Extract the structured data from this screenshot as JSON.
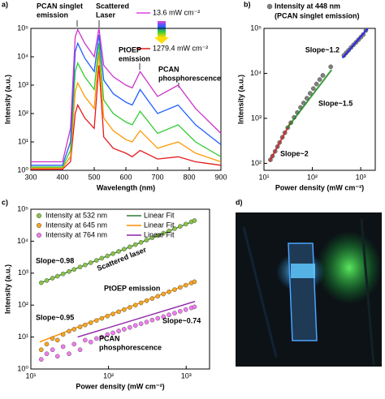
{
  "chart_data": [
    {
      "type": "line",
      "label": "a)",
      "xlabel": "Wavelength (nm)",
      "ylabel": "Intensity (a.u.)",
      "xlim": [
        300,
        900
      ],
      "xticks": [
        300,
        400,
        500,
        600,
        700,
        800,
        900
      ],
      "ylim": [
        1,
        100000
      ],
      "yscale": "log",
      "yticks": [
        {
          "value": 1,
          "label": "10⁰"
        },
        {
          "value": 10,
          "label": "10¹"
        },
        {
          "value": 100,
          "label": "10²"
        },
        {
          "value": 1000,
          "label": "10³"
        },
        {
          "value": 10000,
          "label": "10⁴"
        },
        {
          "value": 100000,
          "label": "10⁵"
        }
      ],
      "x": [
        300,
        400,
        425,
        440,
        448,
        470,
        500,
        515,
        530,
        560,
        600,
        620,
        645,
        700,
        765,
        820,
        900
      ],
      "series": [
        {
          "color": "#e41a1c",
          "values": [
            1.1,
            1.1,
            2,
            100,
            200,
            70,
            30,
            5000,
            15,
            6,
            4,
            3,
            5,
            2.5,
            3,
            2,
            1.5
          ]
        },
        {
          "color": "#ff9900",
          "values": [
            1.2,
            1.2,
            3,
            600,
            1200,
            400,
            150,
            15000,
            70,
            25,
            12,
            10,
            25,
            6,
            10,
            4,
            2
          ]
        },
        {
          "color": "#33cc33",
          "values": [
            1.3,
            1.3,
            5,
            3000,
            6000,
            2000,
            700,
            30000,
            300,
            100,
            50,
            40,
            120,
            20,
            40,
            10,
            3
          ]
        },
        {
          "color": "#1f5fff",
          "values": [
            1.5,
            1.5,
            10,
            15000,
            30000,
            9000,
            3000,
            60000,
            1500,
            500,
            250,
            200,
            700,
            100,
            200,
            40,
            8
          ]
        },
        {
          "color": "#cc33cc",
          "values": [
            2,
            2,
            30,
            50000,
            90000,
            30000,
            10000,
            100000,
            5000,
            2000,
            1000,
            800,
            3000,
            400,
            1000,
            150,
            20
          ]
        }
      ],
      "power_labels": [
        {
          "text": "13.6 mW cm⁻²",
          "color": "#e040e0"
        },
        {
          "text": "1279.4 mW cm⁻²",
          "color": "#e41a1c"
        }
      ],
      "annotations": [
        {
          "lines": [
            "PCAN singlet",
            "emission"
          ],
          "color": "#1a1aff"
        },
        {
          "lines": [
            "Scattered",
            "Laser"
          ],
          "color": "#1a8c1a"
        },
        {
          "lines": [
            "PtOEP",
            "emission"
          ],
          "color": "#d62020"
        },
        {
          "lines": [
            "PCAN",
            "phosphorescence"
          ],
          "color": "#8b1a1a"
        }
      ]
    },
    {
      "type": "scatter",
      "label": "b)",
      "xlabel": "Power density (mW cm⁻²)",
      "ylabel": "Intensity (a.u.)",
      "xlim": [
        10,
        2000
      ],
      "xscale": "log",
      "xticks": [
        {
          "value": 10,
          "label": "10¹"
        },
        {
          "value": 100,
          "label": "10²"
        },
        {
          "value": 1000,
          "label": "10³"
        }
      ],
      "ylim": [
        70,
        100000
      ],
      "yscale": "log",
      "yticks": [
        {
          "value": 100,
          "label": "10²"
        },
        {
          "value": 1000,
          "label": "10³"
        },
        {
          "value": 10000,
          "label": "10⁴"
        },
        {
          "value": 100000,
          "label": "10⁵"
        }
      ],
      "x": [
        13.6,
        15,
        17,
        19,
        21,
        24,
        27,
        31,
        36,
        42,
        49,
        57,
        66,
        77,
        90,
        105,
        122,
        142,
        165,
        240,
        450,
        500,
        560,
        630,
        710,
        800,
        900,
        1010,
        1130,
        1279.4
      ],
      "series": [
        {
          "name": "Intensity at 448 nm",
          "note": "(PCAN singlet emission)",
          "color": "#808080",
          "values": [
            120,
            145,
            185,
            235,
            290,
            380,
            480,
            620,
            800,
            1050,
            1350,
            1750,
            2200,
            2800,
            3600,
            4600,
            5800,
            7300,
            9000,
            14000,
            25000,
            28500,
            32500,
            37500,
            43000,
            49000,
            56000,
            64000,
            73000,
            90000
          ]
        }
      ],
      "fits": [
        {
          "label": "Slope~2",
          "color": "#d62020",
          "x": [
            13,
            36
          ],
          "y": [
            110,
            830
          ]
        },
        {
          "label": "Slope~1.5",
          "color": "#1a8c1a",
          "x": [
            30,
            250
          ],
          "y": [
            600,
            12000
          ]
        },
        {
          "label": "Slope~1.2",
          "color": "#1a1aff",
          "x": [
            420,
            1400
          ],
          "y": [
            22000,
            100000
          ]
        }
      ]
    },
    {
      "type": "scatter",
      "label": "c)",
      "xlabel": "Power density (mW cm⁻²)",
      "ylabel": "Intensity (a.u.)",
      "xlim": [
        10,
        2000
      ],
      "xscale": "log",
      "xticks": [
        {
          "value": 10,
          "label": "10¹"
        },
        {
          "value": 100,
          "label": "10²"
        },
        {
          "value": 1000,
          "label": "10³"
        }
      ],
      "ylim": [
        1,
        100000
      ],
      "yscale": "log",
      "yticks": [
        {
          "value": 1,
          "label": "10⁰"
        },
        {
          "value": 10,
          "label": "10¹"
        },
        {
          "value": 100,
          "label": "10²"
        },
        {
          "value": 1000,
          "label": "10³"
        },
        {
          "value": 10000,
          "label": "10⁴"
        },
        {
          "value": 100000,
          "label": "10⁵"
        }
      ],
      "x": [
        13.6,
        16,
        19,
        22,
        26,
        31,
        36,
        43,
        50,
        59,
        70,
        82,
        97,
        114,
        135,
        159,
        188,
        222,
        262,
        309,
        365,
        431,
        509,
        600,
        709,
        837,
        988,
        1166,
        1279.4
      ],
      "series": [
        {
          "name": "Intensity at 532 nm",
          "color": "#8bc34a",
          "fit_name": "Linear Fit",
          "fit_color": "#2e7d32",
          "fit_x": [
            13,
            1300
          ],
          "fit_y": [
            480,
            44000
          ],
          "values": [
            500,
            586,
            695,
            803,
            947,
            1126,
            1305,
            1554,
            1803,
            2121,
            2511,
            2934,
            3463,
            4061,
            4798,
            5640,
            6650,
            7835,
            9226,
            10860,
            12800,
            15090,
            17790,
            20930,
            24680,
            29080,
            34260,
            40360,
            44200
          ]
        },
        {
          "name": "Intensity at 645 nm",
          "color": "#f5a623",
          "fit_name": "Linear Fit",
          "fit_color": "#ff8c00",
          "fit_x": [
            13,
            1300
          ],
          "fit_y": [
            7,
            550
          ],
          "values": [
            4,
            6,
            9,
            8,
            12,
            15.2,
            17.5,
            20.7,
            23.9,
            28,
            33,
            38.4,
            45.1,
            52.6,
            61.8,
            72.4,
            85,
            99.9,
            117,
            137,
            161,
            189,
            222,
            260,
            305,
            357,
            419,
            491,
            538
          ]
        },
        {
          "name": "Intensity at 764 nm",
          "color": "#f07cf0",
          "fit_name": "Linear Fit",
          "fit_color": "#8e24aa",
          "fit_x": [
            40,
            1300
          ],
          "fit_y": [
            10,
            130
          ],
          "values": [
            2,
            3,
            4,
            2.5,
            5,
            3,
            6,
            4,
            8,
            7,
            9,
            10,
            12,
            13.5,
            15.5,
            17.5,
            20,
            23,
            26,
            29.5,
            34,
            38.5,
            43.5,
            49.5,
            56,
            64,
            72,
            82,
            88
          ]
        }
      ],
      "annotations": [
        {
          "lines": [
            "Slope~0.98"
          ],
          "color": "#2e7d32"
        },
        {
          "lines": [
            "Scattered laser"
          ],
          "color": "#2e7d32"
        },
        {
          "lines": [
            "PtOEP emission"
          ],
          "color": "#ff8c00"
        },
        {
          "lines": [
            "Slope~0.95"
          ],
          "color": "#ff8c00"
        },
        {
          "lines": [
            "Slope~0.74"
          ],
          "color": "#8e24aa"
        },
        {
          "lines": [
            "PCAN",
            "phosphorescence"
          ],
          "color": "#8e24aa"
        }
      ]
    },
    {
      "type": "image",
      "label": "d)"
    }
  ]
}
